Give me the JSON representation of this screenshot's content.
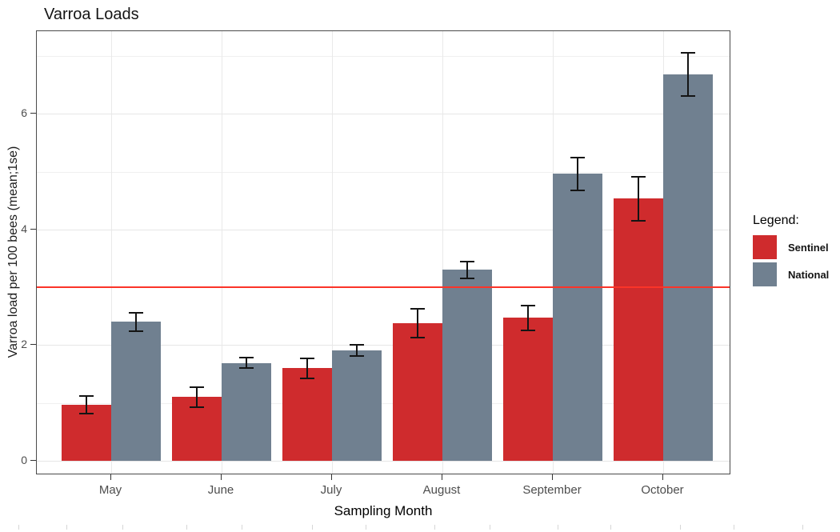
{
  "chart_data": {
    "type": "bar",
    "title": "Varroa Loads",
    "xlabel": "Sampling Month",
    "ylabel": "Varroa load per 100 bees (mean;1se)",
    "legend_title": "Legend:",
    "legend_position": "right",
    "grid": "on",
    "categories": [
      "May",
      "June",
      "July",
      "August",
      "September",
      "October"
    ],
    "series": [
      {
        "name": "Sentinel",
        "color": "#cf2b2d",
        "values": [
          0.97,
          1.1,
          1.6,
          2.38,
          2.47,
          4.53
        ],
        "se": [
          0.15,
          0.17,
          0.17,
          0.25,
          0.22,
          0.38
        ]
      },
      {
        "name": "National",
        "color": "#708090",
        "values": [
          2.4,
          1.69,
          1.91,
          3.3,
          4.96,
          6.68
        ],
        "se": [
          0.16,
          0.09,
          0.1,
          0.15,
          0.28,
          0.37
        ]
      }
    ],
    "reference_line": {
      "y": 3.0,
      "color": "#fb3428"
    },
    "y_ticks": [
      0,
      2,
      4,
      6
    ],
    "y_minor_ticks": [
      1,
      3,
      5,
      7
    ],
    "ylim": [
      0,
      7.45
    ],
    "bottom_ruler_ticks_x": [
      23,
      83,
      153,
      233,
      302,
      390,
      457,
      543,
      612,
      697,
      763,
      850,
      917,
      1003
    ]
  }
}
